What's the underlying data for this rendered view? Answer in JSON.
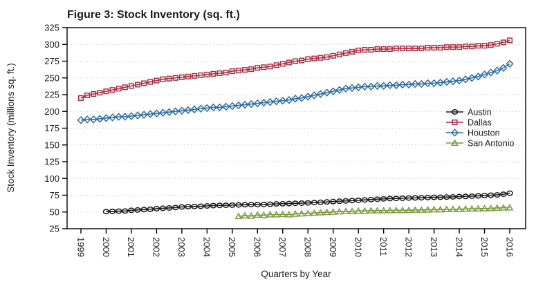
{
  "title": "Figure 3: Stock Inventory (sq. ft.)",
  "colors": {
    "title": "#a31f34",
    "austin": "#1a1a1a",
    "dallas": "#ac2c3e",
    "houston": "#2e6da4",
    "san_antonio": "#7a9a3b",
    "gridline": "#c9c9c9",
    "axis": "#000000",
    "background": "#ffffff"
  },
  "chart_data": {
    "type": "line",
    "title": "Figure 3: Stock Inventory (sq. ft.)",
    "xlabel": "Quarters by Year",
    "ylabel": "Stock Inventory (millions sq. ft.)",
    "x_unit": "quarterly",
    "x_ticks": [
      1999,
      2000,
      2001,
      2002,
      2003,
      2004,
      2005,
      2006,
      2007,
      2008,
      2009,
      2010,
      2011,
      2012,
      2013,
      2014,
      2015,
      2016
    ],
    "ylim": [
      25,
      325
    ],
    "y_tick_step": 25,
    "grid": "horizontal-dotted",
    "legend_position": "right-inside",
    "series": [
      {
        "name": "Austin",
        "marker": "circle",
        "color_key": "austin",
        "start_year": 2000,
        "start_quarter": 1,
        "values": [
          50.5,
          51,
          51.2,
          51.5,
          52.5,
          53,
          53.5,
          54,
          55,
          55.5,
          56,
          56.5,
          57.5,
          58,
          58.2,
          58.5,
          59,
          59.5,
          59.8,
          60,
          60.2,
          60.5,
          60.8,
          61,
          61,
          61.2,
          61.5,
          62,
          62.2,
          62.5,
          63,
          63.2,
          63.5,
          64,
          64.5,
          65,
          65.5,
          66,
          66.5,
          67,
          67.5,
          68,
          68.5,
          69,
          69.5,
          70,
          70.2,
          70.5,
          70.8,
          71,
          71.2,
          71.5,
          71.8,
          72,
          72.2,
          72.5,
          73,
          73.2,
          73.5,
          74,
          74.5,
          75,
          75.5,
          76.5,
          78
        ]
      },
      {
        "name": "Dallas",
        "marker": "square",
        "color_key": "dallas",
        "start_year": 1999,
        "start_quarter": 1,
        "values": [
          220,
          224,
          226,
          228,
          230,
          232,
          234,
          236,
          238,
          240,
          242,
          244,
          246,
          248,
          249,
          250,
          251,
          252,
          253,
          254,
          255,
          256,
          257,
          258,
          260,
          261,
          262,
          263,
          265,
          266,
          267,
          269,
          271,
          273,
          275,
          276,
          278,
          279,
          280,
          281,
          283,
          285,
          287,
          289,
          291,
          292,
          292,
          293,
          293,
          293,
          294,
          294,
          294,
          294,
          294,
          295,
          295,
          295,
          296,
          296,
          296,
          297,
          297,
          298,
          298,
          299,
          301,
          303,
          306
        ]
      },
      {
        "name": "Houston",
        "marker": "diamond",
        "color_key": "houston",
        "start_year": 1999,
        "start_quarter": 1,
        "values": [
          187,
          188,
          188,
          189,
          190,
          191,
          192,
          192,
          193,
          194,
          195,
          196,
          197,
          198,
          199,
          200,
          201,
          202,
          203,
          204,
          205,
          206,
          206,
          207,
          208,
          209,
          210,
          211,
          212,
          213,
          214,
          215,
          216,
          217,
          219,
          220,
          222,
          224,
          226,
          228,
          230,
          232,
          234,
          235,
          236,
          237,
          237,
          238,
          238,
          239,
          239,
          240,
          240,
          241,
          241,
          242,
          242,
          243,
          244,
          245,
          246,
          248,
          250,
          252,
          255,
          258,
          261,
          265,
          271
        ]
      },
      {
        "name": "San Antonio",
        "marker": "triangle",
        "color_key": "san_antonio",
        "start_year": 2005,
        "start_quarter": 2,
        "values": [
          43.5,
          44.5,
          44,
          45.5,
          45,
          46,
          46,
          46.5,
          46,
          47,
          47.5,
          48,
          48.5,
          49,
          49.5,
          50,
          50.5,
          51,
          51,
          51.5,
          51.5,
          52,
          52,
          52,
          52.2,
          52.5,
          52.5,
          52.5,
          53,
          53,
          53.2,
          53.5,
          53.5,
          54,
          54,
          54.2,
          54.5,
          54.8,
          55,
          55.2,
          55.5,
          56,
          56.2,
          56.5
        ]
      }
    ]
  }
}
